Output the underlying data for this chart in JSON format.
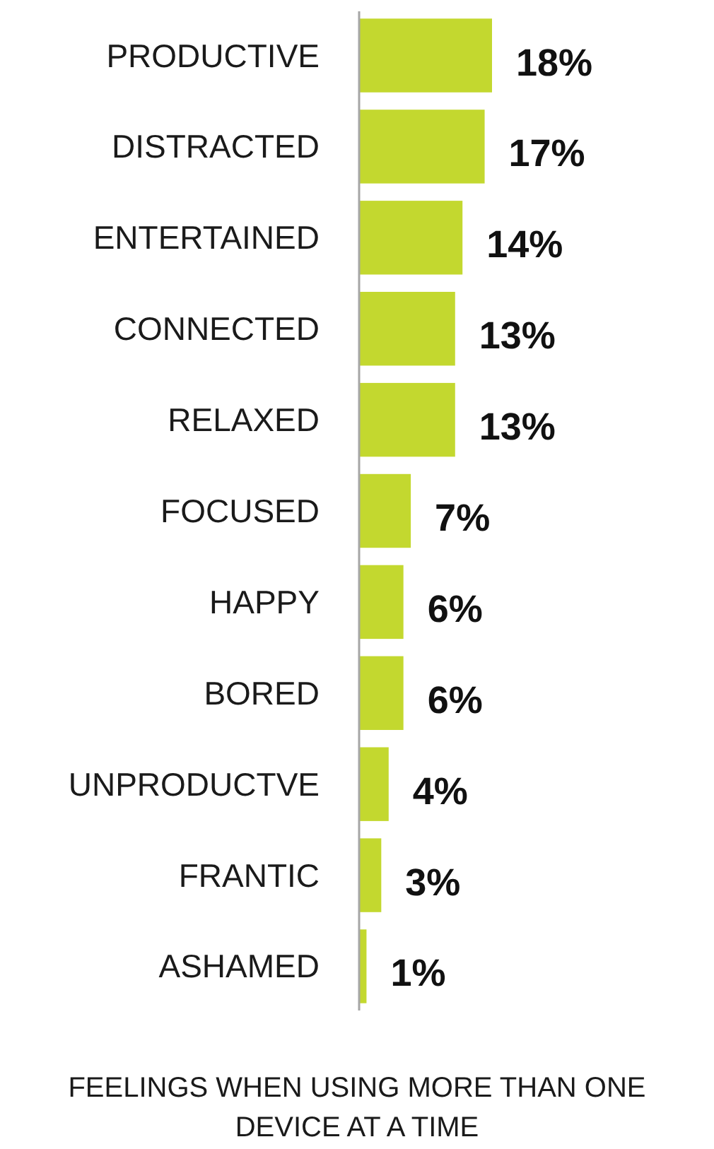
{
  "chart_data": {
    "type": "bar",
    "orientation": "horizontal",
    "title": "FEELINGS WHEN USING MORE THAN ONE DEVICE AT A TIME",
    "categories": [
      "PRODUCTIVE",
      "DISTRACTED",
      "ENTERTAINED",
      "CONNECTED",
      "RELAXED",
      "FOCUSED",
      "HAPPY",
      "BORED",
      "UNPRODUCTVE",
      "FRANTIC",
      "ASHAMED"
    ],
    "values": [
      18,
      17,
      14,
      13,
      13,
      7,
      6,
      6,
      4,
      3,
      1
    ],
    "value_labels": [
      "18%",
      "17%",
      "14%",
      "13%",
      "13%",
      "7%",
      "6%",
      "6%",
      "4%",
      "3%",
      "1%"
    ],
    "color": "#c3d82f"
  }
}
